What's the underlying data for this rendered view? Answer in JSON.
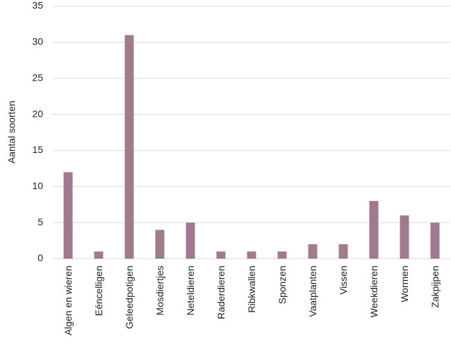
{
  "chart_data": {
    "type": "bar",
    "y_label": "Aantal soorten",
    "categories": [
      "Algen en wieren",
      "Eéncelligen",
      "Geleedpotigen",
      "Mosdiertjes",
      "Neteldieren",
      "Raderdieren",
      "Ribkwallen",
      "Sponzen",
      "Vaatplanten",
      "Vissen",
      "Weekdieren",
      "Wormen",
      "Zakpijpen"
    ],
    "values": [
      12,
      1,
      31,
      4,
      5,
      1,
      1,
      1,
      2,
      2,
      8,
      6,
      5
    ],
    "color": "#a07b8e",
    "ylim": [
      0,
      35
    ],
    "yticks": [
      0,
      5,
      10,
      15,
      20,
      25,
      30,
      35
    ],
    "grid": true
  }
}
